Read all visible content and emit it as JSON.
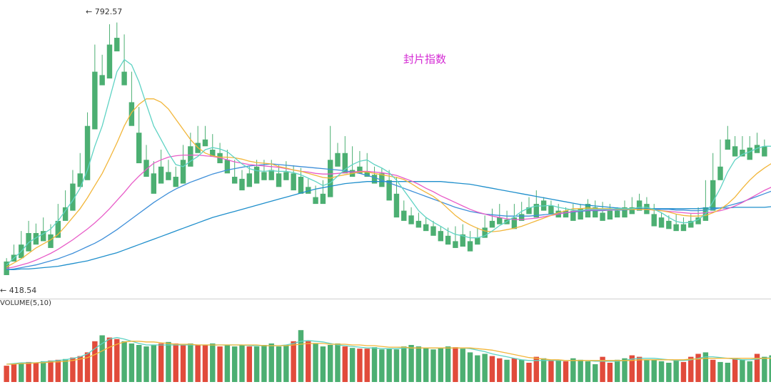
{
  "chart_data": {
    "type": "candlestick",
    "title": "封片指数",
    "high_label": "← 792.57",
    "low_label": "← 418.54",
    "volume_label": "VOLUME(5,10)",
    "ylim": [
      400,
      810
    ],
    "colors": {
      "up": "#e14b3b",
      "down": "#4caf72",
      "ma5": "#5fd3c4",
      "ma10": "#f2b63a",
      "ma20": "#e85cc8",
      "ma30": "#3e8fd9",
      "ma60": "#1f8fcc",
      "title": "#d42bd4"
    },
    "ohlc": [
      [
        440,
        445,
        425,
        420
      ],
      [
        450,
        465,
        445,
        440
      ],
      [
        465,
        485,
        450,
        445
      ],
      [
        482,
        500,
        462,
        455
      ],
      [
        482,
        496,
        470,
        465
      ],
      [
        485,
        505,
        478,
        470
      ],
      [
        480,
        495,
        465,
        460
      ],
      [
        500,
        525,
        480,
        475
      ],
      [
        520,
        545,
        505,
        500
      ],
      [
        555,
        575,
        520,
        515
      ],
      [
        570,
        600,
        555,
        550
      ],
      [
        640,
        660,
        565,
        560
      ],
      [
        720,
        760,
        640,
        635
      ],
      [
        715,
        745,
        712,
        700
      ],
      [
        760,
        790,
        720,
        710
      ],
      [
        770,
        792.57,
        765,
        750
      ],
      [
        720,
        775,
        705,
        700
      ],
      [
        675,
        720,
        650,
        640
      ],
      [
        630,
        668,
        590,
        585
      ],
      [
        590,
        612,
        570,
        565
      ],
      [
        570,
        588,
        545,
        540
      ],
      [
        580,
        605,
        560,
        555
      ],
      [
        572,
        590,
        568,
        560
      ],
      [
        565,
        580,
        560,
        550
      ],
      [
        590,
        612,
        560,
        555
      ],
      [
        610,
        630,
        590,
        580
      ],
      [
        615,
        640,
        610,
        600
      ],
      [
        620,
        640,
        615,
        610
      ],
      [
        605,
        628,
        602,
        595
      ],
      [
        600,
        615,
        590,
        585
      ],
      [
        590,
        605,
        575,
        570
      ],
      [
        565,
        590,
        560,
        555
      ],
      [
        562,
        575,
        555,
        545
      ],
      [
        570,
        580,
        555,
        550
      ],
      [
        580,
        590,
        560,
        555
      ],
      [
        572,
        590,
        568,
        560
      ],
      [
        575,
        590,
        565,
        560
      ],
      [
        570,
        582,
        555,
        550
      ],
      [
        572,
        588,
        565,
        560
      ],
      [
        570,
        582,
        550,
        545
      ],
      [
        565,
        578,
        548,
        540
      ],
      [
        550,
        562,
        545,
        540
      ],
      [
        535,
        552,
        530,
        525
      ],
      [
        540,
        560,
        530,
        525
      ],
      [
        590,
        640,
        540,
        535
      ],
      [
        600,
        615,
        588,
        580
      ],
      [
        600,
        625,
        580,
        570
      ],
      [
        575,
        610,
        570,
        565
      ],
      [
        580,
        603,
        575,
        570
      ],
      [
        572,
        600,
        568,
        565
      ],
      [
        568,
        580,
        562,
        555
      ],
      [
        570,
        578,
        558,
        550
      ],
      [
        560,
        575,
        542,
        530
      ],
      [
        540,
        565,
        515,
        505
      ],
      [
        515,
        530,
        505,
        500
      ],
      [
        508,
        520,
        502,
        495
      ],
      [
        500,
        512,
        495,
        490
      ],
      [
        495,
        505,
        488,
        485
      ],
      [
        492,
        500,
        482,
        478
      ],
      [
        485,
        492,
        475,
        470
      ],
      [
        478,
        490,
        468,
        465
      ],
      [
        470,
        492,
        465,
        460
      ],
      [
        480,
        495,
        468,
        462
      ],
      [
        470,
        485,
        460,
        455
      ],
      [
        475,
        490,
        470,
        465
      ],
      [
        490,
        508,
        480,
        475
      ],
      [
        500,
        518,
        495,
        490
      ],
      [
        505,
        525,
        500,
        495
      ],
      [
        502,
        515,
        500,
        495
      ],
      [
        505,
        525,
        495,
        488
      ],
      [
        510,
        528,
        505,
        500
      ],
      [
        520,
        535,
        515,
        510
      ],
      [
        525,
        545,
        510,
        505
      ],
      [
        530,
        535,
        520,
        515
      ],
      [
        522,
        530,
        515,
        510
      ],
      [
        515,
        525,
        510,
        505
      ],
      [
        515,
        520,
        512,
        505
      ],
      [
        515,
        525,
        505,
        500
      ],
      [
        518,
        525,
        508,
        502
      ],
      [
        525,
        532,
        510,
        505
      ],
      [
        520,
        530,
        510,
        505
      ],
      [
        512,
        528,
        505,
        500
      ],
      [
        515,
        525,
        508,
        502
      ],
      [
        515,
        520,
        510,
        505
      ],
      [
        520,
        530,
        510,
        505
      ],
      [
        520,
        535,
        515,
        510
      ],
      [
        530,
        540,
        520,
        515
      ],
      [
        525,
        535,
        518,
        510
      ],
      [
        510,
        525,
        500,
        492
      ],
      [
        505,
        512,
        495,
        490
      ],
      [
        500,
        508,
        492,
        488
      ],
      [
        495,
        510,
        492,
        485
      ],
      [
        495,
        505,
        490,
        485
      ],
      [
        500,
        510,
        495,
        490
      ],
      [
        505,
        520,
        498,
        495
      ],
      [
        520,
        560,
        505,
        500
      ],
      [
        560,
        600,
        520,
        515
      ],
      [
        580,
        620,
        565,
        560
      ],
      [
        620,
        640,
        610,
        605
      ],
      [
        610,
        625,
        600,
        595
      ],
      [
        605,
        625,
        600,
        595
      ],
      [
        608,
        625,
        595,
        590
      ],
      [
        612,
        630,
        605,
        600
      ],
      [
        610,
        620,
        600,
        595
      ]
    ],
    "ma5": [
      435,
      445,
      455,
      468,
      475,
      481,
      488,
      500,
      515,
      530,
      548,
      575,
      610,
      640,
      680,
      720,
      738,
      730,
      705,
      672,
      640,
      620,
      600,
      583,
      580,
      588,
      595,
      605,
      608,
      606,
      602,
      593,
      584,
      577,
      574,
      573,
      574,
      573,
      573,
      571,
      568,
      563,
      558,
      552,
      556,
      566,
      576,
      583,
      588,
      590,
      583,
      578,
      571,
      560,
      545,
      530,
      515,
      505,
      498,
      492,
      485,
      480,
      478,
      475,
      475,
      478,
      485,
      493,
      499,
      506,
      514,
      519,
      522,
      522,
      523,
      520,
      518,
      516,
      515,
      517,
      517,
      517,
      517,
      518,
      518,
      518,
      520,
      520,
      517,
      512,
      505,
      499,
      497,
      498,
      502,
      510,
      528,
      548,
      572,
      590,
      598,
      602,
      607,
      610,
      610
    ],
    "ma10": [
      432,
      438,
      444,
      452,
      460,
      466,
      472,
      480,
      492,
      505,
      518,
      534,
      552,
      570,
      592,
      615,
      640,
      660,
      672,
      680,
      680,
      675,
      665,
      650,
      635,
      620,
      608,
      600,
      596,
      594,
      594,
      593,
      591,
      588,
      586,
      585,
      584,
      580,
      578,
      575,
      573,
      570,
      567,
      564,
      563,
      566,
      568,
      570,
      572,
      572,
      570,
      568,
      566,
      564,
      561,
      555,
      548,
      542,
      536,
      528,
      518,
      508,
      500,
      494,
      489,
      485,
      484,
      485,
      487,
      489,
      492,
      496,
      500,
      504,
      508,
      512,
      515,
      518,
      518,
      519,
      518,
      518,
      518,
      517,
      517,
      517,
      517,
      517,
      516,
      515,
      513,
      510,
      508,
      507,
      507,
      508,
      512,
      517,
      525,
      535,
      548,
      560,
      570,
      578,
      585
    ],
    "ma20": [
      430,
      432,
      435,
      438,
      442,
      447,
      452,
      458,
      465,
      472,
      480,
      488,
      497,
      507,
      518,
      530,
      542,
      555,
      566,
      576,
      585,
      590,
      594,
      596,
      597,
      597,
      597,
      596,
      595,
      593,
      590,
      587,
      585,
      583,
      582,
      581,
      580,
      579,
      577,
      575,
      573,
      572,
      570,
      569,
      569,
      570,
      571,
      572,
      573,
      573,
      572,
      571,
      569,
      567,
      563,
      559,
      554,
      548,
      543,
      537,
      532,
      527,
      522,
      517,
      513,
      510,
      507,
      505,
      503,
      502,
      502,
      503,
      504,
      506,
      508,
      510,
      512,
      514,
      515,
      516,
      516,
      516,
      516,
      517,
      517,
      517,
      517,
      517,
      516,
      515,
      514,
      513,
      512,
      511,
      511,
      512,
      513,
      515,
      518,
      522,
      527,
      533,
      539,
      545,
      550
    ],
    "ma30": [
      428,
      429,
      431,
      433,
      435,
      438,
      441,
      444,
      448,
      452,
      457,
      462,
      467,
      473,
      480,
      487,
      495,
      503,
      511,
      519,
      527,
      534,
      541,
      547,
      552,
      557,
      561,
      565,
      569,
      572,
      575,
      577,
      579,
      581,
      582,
      583,
      584,
      583,
      582,
      581,
      580,
      579,
      578,
      577,
      576,
      575,
      574,
      572,
      570,
      567,
      564,
      560,
      556,
      552,
      548,
      544,
      540,
      536,
      532,
      528,
      524,
      520,
      517,
      514,
      512,
      510,
      509,
      508,
      507,
      507,
      507,
      507,
      508,
      509,
      510,
      511,
      512,
      513,
      514,
      515,
      515,
      515,
      516,
      516,
      516,
      517,
      517,
      517,
      517,
      517,
      517,
      516,
      516,
      515,
      515,
      516,
      517,
      519,
      522,
      525,
      528,
      532,
      536,
      540,
      544
    ],
    "ma60": [
      428,
      428,
      429,
      429,
      430,
      431,
      432,
      433,
      435,
      437,
      439,
      441,
      444,
      447,
      450,
      453,
      457,
      461,
      465,
      469,
      473,
      477,
      481,
      485,
      489,
      493,
      497,
      501,
      505,
      508,
      511,
      514,
      517,
      520,
      523,
      526,
      529,
      532,
      535,
      538,
      541,
      544,
      547,
      549,
      551,
      553,
      555,
      556,
      557,
      558,
      558,
      558,
      558,
      558,
      558,
      558,
      558,
      558,
      558,
      558,
      557,
      556,
      555,
      554,
      552,
      550,
      548,
      546,
      544,
      542,
      540,
      538,
      536,
      534,
      532,
      530,
      528,
      526,
      524,
      523,
      522,
      521,
      520,
      519,
      518,
      518,
      518,
      518,
      518,
      518,
      518,
      518,
      518,
      518,
      518,
      519,
      519,
      519,
      519,
      520,
      520,
      520,
      520,
      520,
      521
    ],
    "volume": [
      22,
      24,
      26,
      27,
      26,
      28,
      29,
      30,
      31,
      33,
      35,
      40,
      55,
      63,
      60,
      58,
      55,
      52,
      50,
      48,
      50,
      52,
      54,
      52,
      50,
      52,
      50,
      50,
      52,
      48,
      50,
      48,
      50,
      48,
      48,
      50,
      52,
      48,
      50,
      55,
      70,
      55,
      52,
      48,
      50,
      52,
      48,
      46,
      45,
      45,
      47,
      44,
      45,
      44,
      48,
      50,
      48,
      46,
      44,
      46,
      48,
      47,
      45,
      40,
      36,
      38,
      35,
      32,
      30,
      32,
      30,
      26,
      34,
      32,
      30,
      30,
      28,
      32,
      30,
      28,
      24,
      34,
      26,
      30,
      32,
      36,
      34,
      30,
      30,
      28,
      26,
      30,
      27,
      34,
      38,
      40,
      30,
      27,
      26,
      32,
      30,
      28,
      38,
      34,
      36
    ],
    "volume_colors": [
      "up",
      "up",
      "down",
      "up",
      "up",
      "down",
      "up",
      "up",
      "down",
      "up",
      "up",
      "up",
      "up",
      "down",
      "up",
      "up",
      "down",
      "down",
      "down",
      "down",
      "down",
      "up",
      "down",
      "up",
      "up",
      "down",
      "up",
      "up",
      "down",
      "up",
      "down",
      "down",
      "down",
      "up",
      "down",
      "down",
      "down",
      "down",
      "down",
      "up",
      "down",
      "up",
      "down",
      "down",
      "down",
      "down",
      "up",
      "down",
      "up",
      "up",
      "down",
      "down",
      "down",
      "down",
      "down",
      "down",
      "down",
      "down",
      "down",
      "down",
      "down",
      "up",
      "down",
      "down",
      "down",
      "down",
      "up",
      "up",
      "down",
      "up",
      "down",
      "up",
      "up",
      "down",
      "up",
      "down",
      "up",
      "down",
      "down",
      "down",
      "down",
      "up",
      "up",
      "down",
      "down",
      "up",
      "up",
      "down",
      "down",
      "down",
      "down",
      "down",
      "up",
      "up",
      "up",
      "down",
      "up",
      "down",
      "down",
      "up",
      "down",
      "down",
      "up",
      "down",
      "down"
    ],
    "vol_ma5": [
      24,
      25,
      26,
      26,
      26,
      27,
      28,
      29,
      30,
      32,
      34,
      38,
      45,
      52,
      58,
      60,
      58,
      55,
      52,
      50,
      50,
      50,
      50,
      50,
      50,
      50,
      50,
      50,
      50,
      50,
      50,
      50,
      50,
      49,
      49,
      49,
      49,
      49,
      50,
      52,
      55,
      56,
      55,
      54,
      52,
      50,
      49,
      48,
      47,
      46,
      46,
      45,
      45,
      45,
      46,
      46,
      46,
      46,
      46,
      46,
      46,
      46,
      46,
      45,
      43,
      41,
      38,
      36,
      34,
      32,
      30,
      29,
      29,
      29,
      29,
      29,
      29,
      29,
      29,
      29,
      28,
      28,
      28,
      28,
      29,
      31,
      32,
      32,
      32,
      31,
      30,
      29,
      29,
      30,
      32,
      34,
      34,
      33,
      32,
      31,
      30,
      30,
      31,
      32,
      33
    ],
    "vol_ma10": [
      24,
      24,
      25,
      25,
      26,
      26,
      27,
      27,
      28,
      29,
      31,
      33,
      37,
      42,
      47,
      51,
      54,
      55,
      55,
      54,
      54,
      53,
      52,
      51,
      51,
      51,
      50,
      50,
      50,
      50,
      50,
      50,
      50,
      50,
      50,
      49,
      49,
      49,
      49,
      50,
      51,
      52,
      52,
      52,
      51,
      51,
      51,
      50,
      50,
      49,
      49,
      48,
      47,
      47,
      47,
      46,
      46,
      46,
      46,
      46,
      46,
      46,
      46,
      46,
      45,
      44,
      43,
      41,
      39,
      37,
      35,
      33,
      32,
      31,
      30,
      30,
      29,
      29,
      29,
      29,
      29,
      29,
      29,
      29,
      29,
      29,
      30,
      30,
      30,
      30,
      30,
      30,
      30,
      31,
      31,
      32,
      32,
      32,
      32,
      32,
      32,
      32,
      32,
      32,
      32
    ],
    "vol_max": 100
  }
}
